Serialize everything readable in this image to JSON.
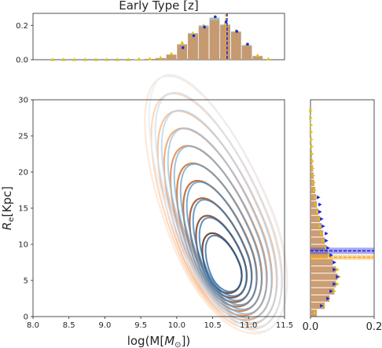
{
  "chart_data": {
    "type": "scatter",
    "title": "Early Type [z]",
    "xlabel": "log(M[M⊙])",
    "ylabel": "Re[Kpc]",
    "main": {
      "xlim": [
        8.0,
        11.5
      ],
      "ylim": [
        0,
        30
      ],
      "xticks": [
        "8.0",
        "8.5",
        "9.0",
        "9.5",
        "10.0",
        "10.5",
        "11.0",
        "11.5"
      ],
      "yticks": [
        "0",
        "5",
        "10",
        "15",
        "20",
        "25",
        "30"
      ],
      "contour_center": [
        10.65,
        6.0
      ],
      "contour_levels": 10
    },
    "top_hist": {
      "ylim": [
        0,
        0.27
      ],
      "yticks": [
        "0.0",
        "0.2"
      ],
      "bin_edges": [
        8.2,
        8.35,
        8.5,
        8.65,
        8.8,
        8.95,
        9.1,
        9.25,
        9.4,
        9.55,
        9.7,
        9.85,
        10.0,
        10.15,
        10.3,
        10.45,
        10.6,
        10.75,
        10.9,
        11.05,
        11.2,
        11.35
      ],
      "series": [
        {
          "name": "orange",
          "color": "#c8986a",
          "values": [
            0.0,
            0.0,
            0.0,
            0.0,
            0.0,
            0.0,
            0.0,
            0.0,
            0.002,
            0.005,
            0.01,
            0.03,
            0.09,
            0.15,
            0.19,
            0.23,
            0.2,
            0.16,
            0.08,
            0.02,
            0.0
          ]
        },
        {
          "name": "blue",
          "color": "#8fb6d9",
          "values": [
            0.0,
            0.0,
            0.0,
            0.0,
            0.0,
            0.0,
            0.0,
            0.0,
            0.002,
            0.004,
            0.009,
            0.028,
            0.085,
            0.155,
            0.2,
            0.245,
            0.205,
            0.165,
            0.085,
            0.022,
            0.0
          ]
        }
      ],
      "points_yellow": [
        0.002,
        0.002,
        0.002,
        0.002,
        0.002,
        0.002,
        0.002,
        0.002,
        0.004,
        0.006,
        0.012,
        0.035,
        0.1,
        0.155,
        0.2,
        0.245,
        0.21,
        0.17,
        0.09,
        0.025,
        0.005
      ],
      "points_blue": [
        null,
        null,
        null,
        null,
        null,
        null,
        null,
        null,
        null,
        null,
        null,
        null,
        0.07,
        0.14,
        0.19,
        0.25,
        0.22,
        0.165,
        0.09,
        null,
        null
      ],
      "median_orange": 10.68,
      "median_blue": 10.7
    },
    "right_hist": {
      "xlim": [
        0,
        0.2
      ],
      "xticks": [
        "0.0",
        "0.2"
      ],
      "bin_edges": [
        0,
        1,
        2,
        3,
        4,
        5,
        6,
        7,
        8,
        9,
        10,
        11,
        12,
        13,
        14,
        15,
        16,
        17,
        18,
        19,
        20,
        21,
        22,
        23,
        24,
        25,
        26,
        27,
        28,
        29
      ],
      "series": [
        {
          "name": "orange",
          "color": "#c8986a",
          "values": [
            0.02,
            0.045,
            0.06,
            0.075,
            0.08,
            0.085,
            0.08,
            0.07,
            0.055,
            0.05,
            0.045,
            0.04,
            0.035,
            0.03,
            0.025,
            0.02,
            0.018,
            0.015,
            0.012,
            0.01,
            0.008,
            0.006,
            0.005,
            0.004,
            0.003,
            0.002,
            0.001,
            0.001,
            0.0
          ]
        }
      ],
      "points_yellow": [
        0.015,
        0.04,
        0.055,
        0.075,
        0.085,
        0.09,
        0.085,
        0.075,
        0.06,
        0.05,
        0.04,
        0.035,
        0.03,
        0.028,
        0.022,
        0.018,
        0.015,
        0.013,
        0.011,
        0.009,
        0.007,
        0.006,
        0.005,
        0.004,
        0.003,
        0.002,
        0.002,
        0.001,
        0.001
      ],
      "points_blue": [
        null,
        0.03,
        0.05,
        0.06,
        0.07,
        0.08,
        0.07,
        0.07,
        0.06,
        0.05,
        0.045,
        0.045,
        0.035,
        0.03,
        0.025,
        0.025,
        0.02,
        null,
        null,
        null,
        null,
        null,
        null,
        null,
        null,
        null,
        null,
        null,
        null
      ],
      "median_orange": 8.2,
      "median_blue": 9.1
    }
  }
}
